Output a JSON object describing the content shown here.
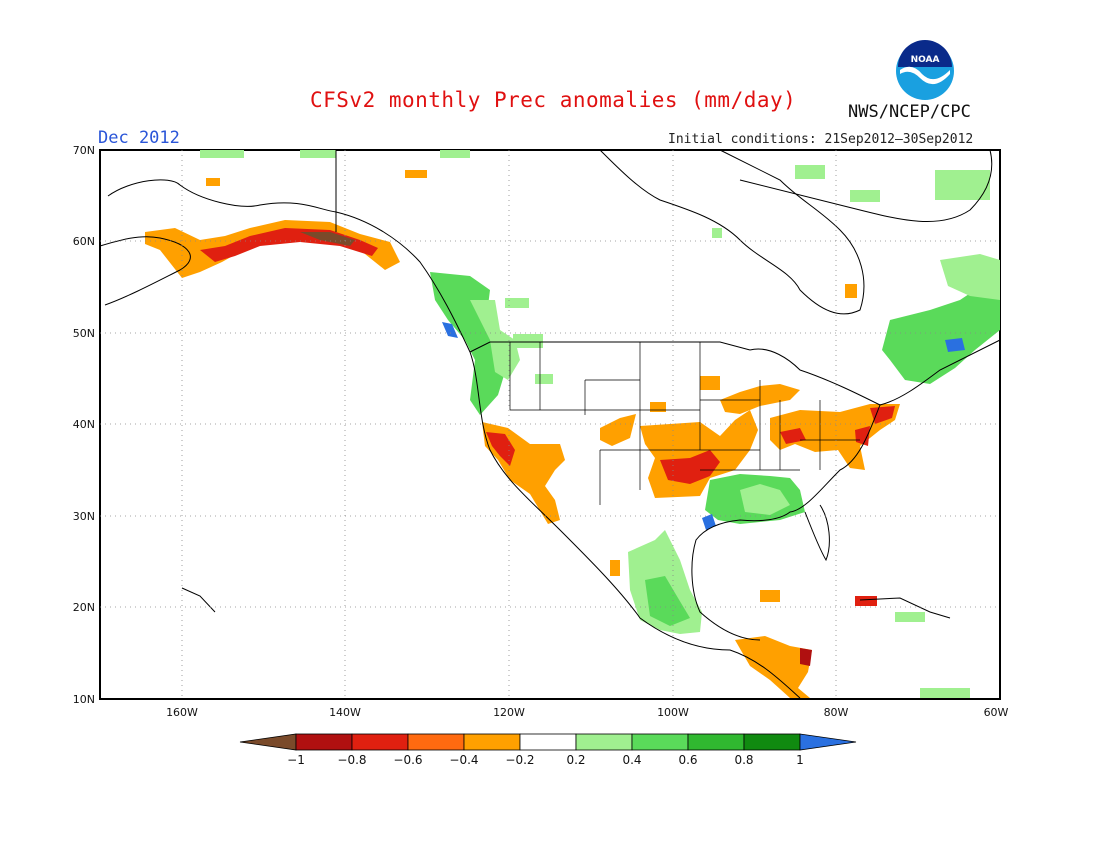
{
  "title": "CFSv2 monthly Prec anomalies (mm/day)",
  "valid_month": "Dec 2012",
  "initial_conditions": "Initial conditions: 21Sep2012–30Sep2012",
  "agency": "NWS/NCEP/CPC",
  "logo": {
    "icon": "noaa-logo-icon",
    "text": "NOAA"
  },
  "map": {
    "lat_labels": [
      "70N",
      "60N",
      "50N",
      "40N",
      "30N",
      "20N",
      "10N"
    ],
    "lon_labels": [
      "160W",
      "140W",
      "120W",
      "100W",
      "80W",
      "60W"
    ],
    "lat_range": [
      10,
      70
    ],
    "lon_range": [
      -170,
      -60
    ],
    "grid": "dotted"
  },
  "colorbar": {
    "tick_labels": [
      "−1",
      "−0.8",
      "−0.6",
      "−0.4",
      "−0.2",
      "0.2",
      "0.4",
      "0.6",
      "0.8",
      "1"
    ],
    "colors": [
      "#7a4a2a",
      "#b01010",
      "#e02010",
      "#ff6a10",
      "#ffa000",
      "#ffffff",
      "#a0f090",
      "#5ada5a",
      "#30b830",
      "#108a10",
      "#2a70e0"
    ]
  }
}
